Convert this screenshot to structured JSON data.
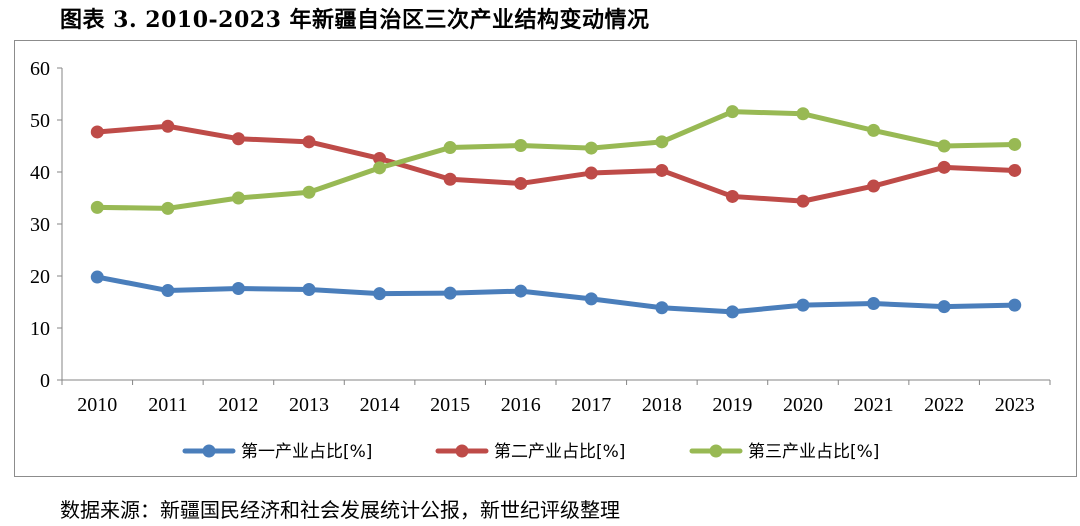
{
  "title": "图表 3. 2010-2023 年新疆自治区三次产业结构变动情况",
  "source": "数据来源：新疆国民经济和社会发展统计公报，新世纪评级整理",
  "chart_data": {
    "type": "line",
    "x": [
      "2010",
      "2011",
      "2012",
      "2013",
      "2014",
      "2015",
      "2016",
      "2017",
      "2018",
      "2019",
      "2020",
      "2021",
      "2022",
      "2023"
    ],
    "ylim": [
      0,
      60
    ],
    "yticks": [
      0,
      10,
      20,
      30,
      40,
      50,
      60
    ],
    "grid": false,
    "legend_position": "bottom",
    "series": [
      {
        "name": "第一产业占比[%]",
        "color": "#4a7ebb",
        "values": [
          19.8,
          17.2,
          17.6,
          17.4,
          16.6,
          16.7,
          17.1,
          15.6,
          13.9,
          13.1,
          14.4,
          14.7,
          14.1,
          14.4
        ]
      },
      {
        "name": "第二产业占比[%]",
        "color": "#be4b48",
        "values": [
          47.7,
          48.8,
          46.4,
          45.8,
          42.6,
          38.6,
          37.8,
          39.8,
          40.3,
          35.3,
          34.4,
          37.3,
          40.9,
          40.3
        ]
      },
      {
        "name": "第三产业占比[%]",
        "color": "#98b954",
        "values": [
          33.2,
          33.0,
          35.0,
          36.1,
          40.8,
          44.7,
          45.1,
          44.6,
          45.8,
          51.6,
          51.2,
          48.0,
          45.0,
          45.3
        ]
      }
    ]
  }
}
